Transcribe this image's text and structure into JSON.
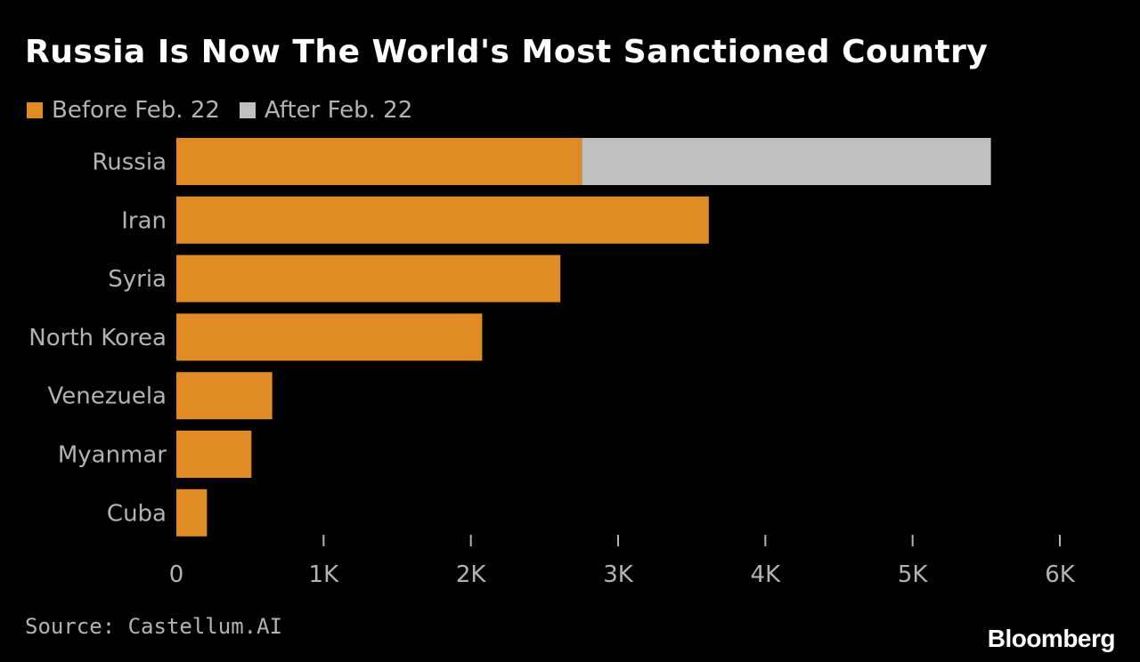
{
  "colors": {
    "background": "#000000",
    "before": "#e08b26",
    "after": "#c0c0c0",
    "label": "#b3b3b3"
  },
  "footer": {
    "source": "Source: Castellum.AI",
    "brand": "Bloomberg"
  },
  "chart_data": {
    "type": "bar",
    "orientation": "horizontal",
    "stacked": true,
    "title": "Russia Is Now The World's Most Sanctioned Country",
    "categories": [
      "Russia",
      "Iran",
      "Syria",
      "North Korea",
      "Venezuela",
      "Myanmar",
      "Cuba"
    ],
    "series": [
      {
        "name": "Before Feb. 22",
        "color": "#e08b26",
        "values": [
          2754,
          3616,
          2608,
          2077,
          651,
          510,
          208
        ]
      },
      {
        "name": "After Feb. 22",
        "color": "#c0c0c0",
        "values": [
          2778,
          0,
          0,
          0,
          0,
          0,
          0
        ]
      }
    ],
    "xlim": [
      0,
      6000
    ],
    "xticks": [
      0,
      1000,
      2000,
      3000,
      4000,
      5000,
      6000
    ],
    "xtick_labels": [
      "0",
      "1K",
      "2K",
      "3K",
      "4K",
      "5K",
      "6K"
    ],
    "xlabel": "",
    "ylabel": "",
    "grid": false,
    "legend": "top-left"
  }
}
